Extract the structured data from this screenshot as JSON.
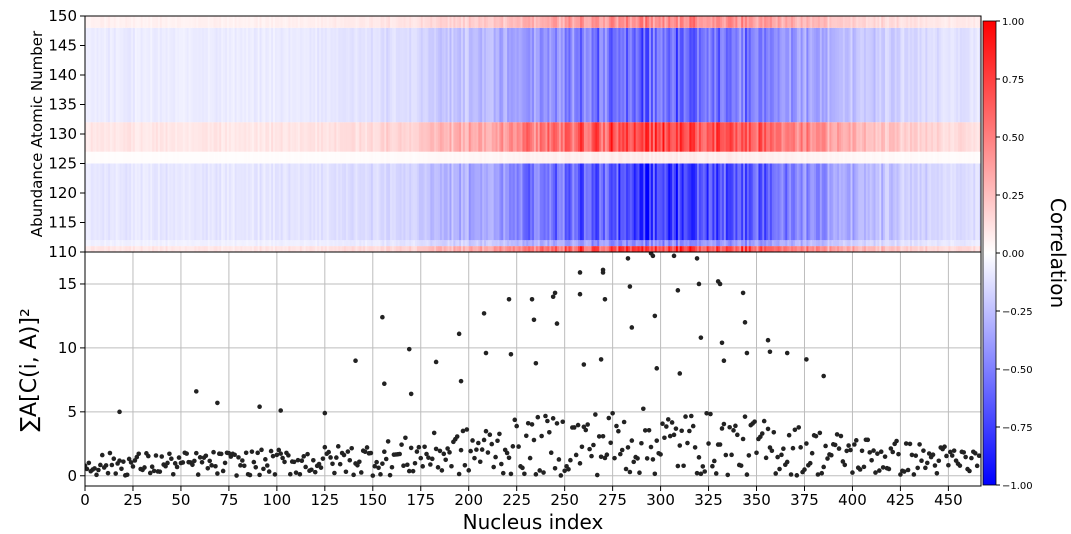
{
  "chart_data": [
    {
      "type": "heatmap",
      "ylabel": "Abundance Atomic Number",
      "xlim": [
        0,
        467
      ],
      "ylim": [
        110,
        150
      ],
      "yticks": [
        110,
        115,
        120,
        125,
        130,
        135,
        140,
        145,
        150
      ],
      "colormap": "bwr",
      "colors": {
        "low": "#0000ff",
        "mid": "#ffffff",
        "high": "#ff0000"
      },
      "colorbar": {
        "label": "Correlation",
        "range": [
          -1.0,
          1.0
        ],
        "ticks": [
          "1.00",
          "0.75",
          "0.50",
          "0.25",
          "0.00",
          "−0.25",
          "−0.50",
          "−0.75",
          "−1.00"
        ]
      },
      "row_bands": [
        {
          "y": [
            110,
            111
          ],
          "sign": 1
        },
        {
          "y": [
            111,
            112
          ],
          "sign": -0.6
        },
        {
          "y": [
            112,
            125
          ],
          "sign": -1
        },
        {
          "y": [
            125,
            127
          ],
          "sign": 0.1
        },
        {
          "y": [
            127,
            132
          ],
          "sign": 1
        },
        {
          "y": [
            132,
            148
          ],
          "sign": -0.8
        },
        {
          "y": [
            148,
            150
          ],
          "sign": 0.6
        }
      ]
    },
    {
      "type": "scatter",
      "xlabel": "Nucleus index",
      "ylabel": "∑A[C(i, A)]²",
      "xlim": [
        0,
        467
      ],
      "ylim": [
        -0.8,
        17.5
      ],
      "xticks": [
        0,
        25,
        50,
        75,
        100,
        125,
        150,
        175,
        200,
        225,
        250,
        275,
        300,
        325,
        350,
        375,
        400,
        425,
        450
      ],
      "yticks": [
        0,
        5,
        10,
        15
      ],
      "grid": true,
      "marker_color": "#222222",
      "highlighted_points": [
        {
          "x": 18,
          "y": 5.0
        },
        {
          "x": 58,
          "y": 6.6
        },
        {
          "x": 69,
          "y": 5.7
        },
        {
          "x": 91,
          "y": 5.4
        },
        {
          "x": 102,
          "y": 5.1
        },
        {
          "x": 125,
          "y": 4.9
        },
        {
          "x": 141,
          "y": 9.0
        },
        {
          "x": 155,
          "y": 12.4
        },
        {
          "x": 156,
          "y": 7.2
        },
        {
          "x": 169,
          "y": 9.9
        },
        {
          "x": 170,
          "y": 6.4
        },
        {
          "x": 183,
          "y": 8.9
        },
        {
          "x": 195,
          "y": 11.1
        },
        {
          "x": 196,
          "y": 7.4
        },
        {
          "x": 208,
          "y": 12.7
        },
        {
          "x": 209,
          "y": 9.6
        },
        {
          "x": 221,
          "y": 13.8
        },
        {
          "x": 222,
          "y": 9.5
        },
        {
          "x": 233,
          "y": 13.8
        },
        {
          "x": 234,
          "y": 12.2
        },
        {
          "x": 235,
          "y": 8.8
        },
        {
          "x": 244,
          "y": 14.0
        },
        {
          "x": 245,
          "y": 14.3
        },
        {
          "x": 246,
          "y": 11.9
        },
        {
          "x": 258,
          "y": 15.9
        },
        {
          "x": 258,
          "y": 14.2
        },
        {
          "x": 260,
          "y": 8.7
        },
        {
          "x": 270,
          "y": 15.9
        },
        {
          "x": 270,
          "y": 16.1
        },
        {
          "x": 271,
          "y": 13.8
        },
        {
          "x": 269,
          "y": 9.1
        },
        {
          "x": 283,
          "y": 17.0
        },
        {
          "x": 283,
          "y": 17.9
        },
        {
          "x": 284,
          "y": 14.8
        },
        {
          "x": 285,
          "y": 11.6
        },
        {
          "x": 295,
          "y": 17.4
        },
        {
          "x": 296,
          "y": 17.2
        },
        {
          "x": 297,
          "y": 12.5
        },
        {
          "x": 298,
          "y": 8.4
        },
        {
          "x": 307,
          "y": 17.2
        },
        {
          "x": 309,
          "y": 14.5
        },
        {
          "x": 310,
          "y": 8.0
        },
        {
          "x": 319,
          "y": 17.0
        },
        {
          "x": 320,
          "y": 15.0
        },
        {
          "x": 321,
          "y": 10.8
        },
        {
          "x": 330,
          "y": 15.2
        },
        {
          "x": 331,
          "y": 15.0
        },
        {
          "x": 332,
          "y": 10.4
        },
        {
          "x": 333,
          "y": 9.0
        },
        {
          "x": 343,
          "y": 14.3
        },
        {
          "x": 344,
          "y": 12.0
        },
        {
          "x": 345,
          "y": 9.6
        },
        {
          "x": 356,
          "y": 10.6
        },
        {
          "x": 357,
          "y": 9.7
        },
        {
          "x": 366,
          "y": 9.6
        },
        {
          "x": 376,
          "y": 9.1
        },
        {
          "x": 385,
          "y": 7.8
        }
      ]
    }
  ]
}
